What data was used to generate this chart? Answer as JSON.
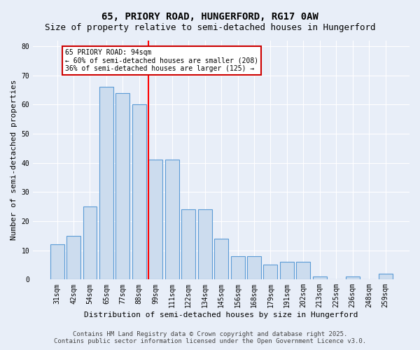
{
  "title": "65, PRIORY ROAD, HUNGERFORD, RG17 0AW",
  "subtitle": "Size of property relative to semi-detached houses in Hungerford",
  "xlabel": "Distribution of semi-detached houses by size in Hungerford",
  "ylabel": "Number of semi-detached properties",
  "categories": [
    "31sqm",
    "42sqm",
    "54sqm",
    "65sqm",
    "77sqm",
    "88sqm",
    "99sqm",
    "111sqm",
    "122sqm",
    "134sqm",
    "145sqm",
    "156sqm",
    "168sqm",
    "179sqm",
    "191sqm",
    "202sqm",
    "213sqm",
    "225sqm",
    "236sqm",
    "248sqm",
    "259sqm"
  ],
  "values": [
    12,
    15,
    25,
    66,
    64,
    60,
    41,
    41,
    24,
    24,
    14,
    8,
    8,
    5,
    6,
    6,
    1,
    0,
    1,
    0,
    2
  ],
  "bar_color": "#ccdcee",
  "bar_edge_color": "#5b9bd5",
  "reference_line_label": "65 PRIORY ROAD: 94sqm",
  "annotation_line1": "← 60% of semi-detached houses are smaller (208)",
  "annotation_line2": "36% of semi-detached houses are larger (125) →",
  "annotation_box_color": "#ffffff",
  "annotation_box_edge_color": "#cc0000",
  "ylim": [
    0,
    82
  ],
  "yticks": [
    0,
    10,
    20,
    30,
    40,
    50,
    60,
    70,
    80
  ],
  "footer_line1": "Contains HM Land Registry data © Crown copyright and database right 2025.",
  "footer_line2": "Contains public sector information licensed under the Open Government Licence v3.0.",
  "bg_color": "#e8eef8",
  "plot_bg_color": "#e8eef8",
  "grid_color": "#ffffff",
  "title_fontsize": 10,
  "subtitle_fontsize": 9,
  "axis_label_fontsize": 8,
  "tick_fontsize": 7,
  "footer_fontsize": 6.5
}
